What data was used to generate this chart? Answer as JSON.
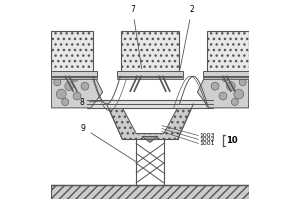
{
  "bg_color": "#ffffff",
  "line_color": "#555555",
  "figsize": [
    3.0,
    2.0
  ],
  "dpi": 100,
  "ground_hatch": "////",
  "ground_color": "#cccccc",
  "rock_color": "#d0d0d0",
  "hopper_color": "#e8e8e8",
  "funnel_fill_color": "#cccccc",
  "beam_color": "#e0e0e0",
  "rail_color": "#bbbbbb"
}
